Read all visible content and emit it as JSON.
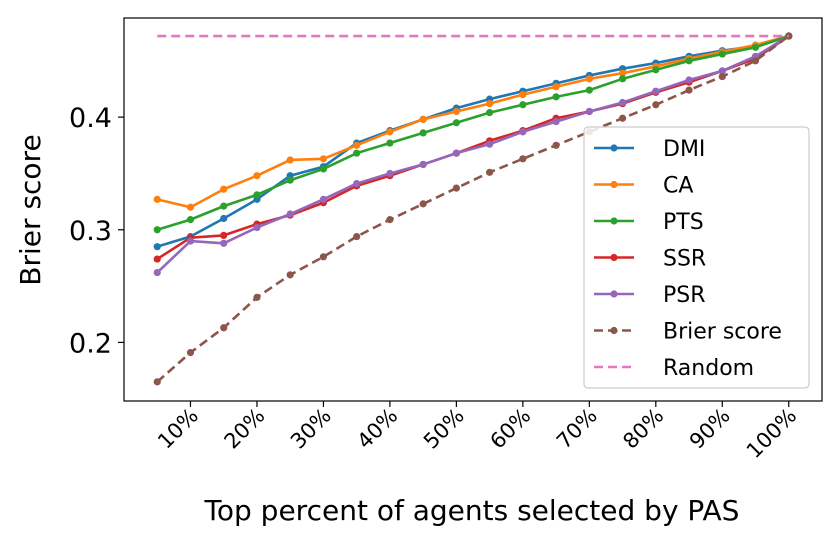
{
  "chart_data": {
    "type": "line",
    "title": "",
    "xlabel": "Top percent of agents selected by PAS",
    "ylabel": "Brier score",
    "xlim": [
      0,
      105
    ],
    "ylim": [
      0.148,
      0.488
    ],
    "x": [
      5,
      10,
      15,
      20,
      25,
      30,
      35,
      40,
      45,
      50,
      55,
      60,
      65,
      70,
      75,
      80,
      85,
      90,
      95,
      100
    ],
    "xticks": [
      10,
      20,
      30,
      40,
      50,
      60,
      70,
      80,
      90,
      100
    ],
    "xtick_labels": [
      "10%",
      "20%",
      "30%",
      "40%",
      "50%",
      "60%",
      "70%",
      "80%",
      "90%",
      "100%"
    ],
    "yticks": [
      0.2,
      0.3,
      0.4
    ],
    "ytick_labels": [
      "0.2",
      "0.3",
      "0.4"
    ],
    "legend_position": "lower-right",
    "series": [
      {
        "name": "DMI",
        "color": "#1f77b4",
        "style": "solid",
        "marker": true,
        "values": [
          0.285,
          0.294,
          0.31,
          0.327,
          0.348,
          0.356,
          0.377,
          0.388,
          0.398,
          0.408,
          0.416,
          0.423,
          0.43,
          0.437,
          0.443,
          0.448,
          0.454,
          0.459,
          0.463,
          0.472
        ]
      },
      {
        "name": "CA",
        "color": "#ff7f0e",
        "style": "solid",
        "marker": true,
        "values": [
          0.327,
          0.32,
          0.336,
          0.348,
          0.362,
          0.363,
          0.375,
          0.387,
          0.398,
          0.405,
          0.412,
          0.42,
          0.427,
          0.434,
          0.439,
          0.445,
          0.452,
          0.458,
          0.464,
          0.472
        ]
      },
      {
        "name": "PTS",
        "color": "#2ca02c",
        "style": "solid",
        "marker": true,
        "values": [
          0.3,
          0.309,
          0.321,
          0.331,
          0.344,
          0.354,
          0.368,
          0.377,
          0.386,
          0.395,
          0.404,
          0.411,
          0.418,
          0.424,
          0.434,
          0.442,
          0.45,
          0.456,
          0.462,
          0.472
        ]
      },
      {
        "name": "SSR",
        "color": "#d62728",
        "style": "solid",
        "marker": true,
        "values": [
          0.274,
          0.293,
          0.295,
          0.305,
          0.313,
          0.324,
          0.339,
          0.348,
          0.358,
          0.368,
          0.379,
          0.388,
          0.399,
          0.405,
          0.412,
          0.422,
          0.431,
          0.441,
          0.452,
          0.472
        ]
      },
      {
        "name": "PSR",
        "color": "#9467bd",
        "style": "solid",
        "marker": true,
        "values": [
          0.262,
          0.29,
          0.288,
          0.302,
          0.314,
          0.327,
          0.341,
          0.35,
          0.358,
          0.368,
          0.376,
          0.387,
          0.396,
          0.405,
          0.413,
          0.423,
          0.433,
          0.441,
          0.454,
          0.472
        ]
      },
      {
        "name": "Brier score",
        "color": "#8c564b",
        "style": "dashed",
        "marker": true,
        "values": [
          0.165,
          0.191,
          0.213,
          0.24,
          0.26,
          0.276,
          0.294,
          0.309,
          0.323,
          0.337,
          0.351,
          0.363,
          0.375,
          0.387,
          0.399,
          0.411,
          0.424,
          0.436,
          0.45,
          0.472
        ]
      },
      {
        "name": "Random",
        "color": "#e377c2",
        "style": "dashed",
        "marker": false,
        "values": [
          0.472,
          0.472,
          0.472,
          0.472,
          0.472,
          0.472,
          0.472,
          0.472,
          0.472,
          0.472,
          0.472,
          0.472,
          0.472,
          0.472,
          0.472,
          0.472,
          0.472,
          0.472,
          0.472,
          0.472
        ]
      }
    ]
  }
}
